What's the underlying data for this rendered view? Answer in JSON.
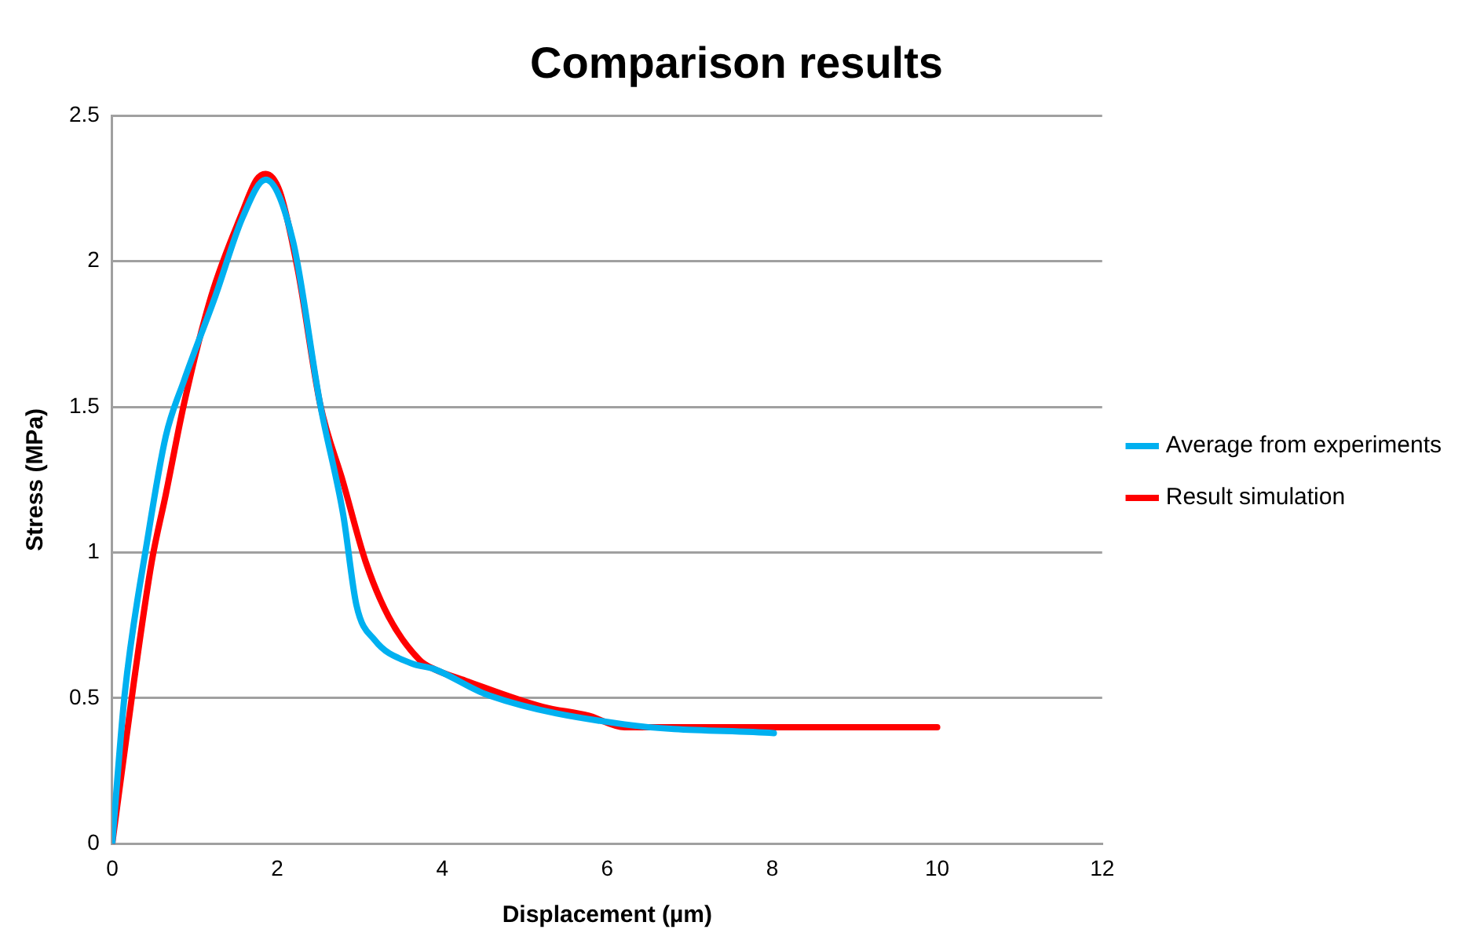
{
  "chart_data": {
    "type": "line",
    "title": "Comparison results",
    "xlabel": "Displacement (µm)",
    "ylabel": "Stress (MPa)",
    "xlim": [
      0,
      12
    ],
    "xticks": [
      0,
      2,
      4,
      6,
      8,
      10,
      12
    ],
    "ylim": [
      0,
      2.5
    ],
    "yticks": [
      0,
      0.5,
      1,
      1.5,
      2,
      2.5
    ],
    "grid": "y",
    "legend": "right",
    "marker": "none",
    "line_style": "solid",
    "series": [
      {
        "name": "Average from experiments",
        "color": "#00b0f0",
        "x": [
          0,
          0.15,
          0.43,
          0.65,
          0.87,
          1.25,
          1.58,
          1.86,
          2.19,
          2.52,
          2.8,
          2.96,
          3.18,
          3.62,
          3.9,
          4.56,
          6.21,
          8.02
        ],
        "values": [
          0,
          0.51,
          1.05,
          1.4,
          1.59,
          1.88,
          2.15,
          2.28,
          2.07,
          1.51,
          1.13,
          0.82,
          0.7,
          0.62,
          0.6,
          0.51,
          0.41,
          0.38
        ]
      },
      {
        "name": "Result simulation",
        "color": "#ff0000",
        "x": [
          0,
          0.26,
          0.48,
          0.65,
          0.87,
          1.2,
          1.58,
          1.75,
          1.86,
          2.03,
          2.25,
          2.52,
          2.8,
          3.07,
          3.35,
          3.73,
          3.9,
          4.28,
          5.22,
          5.77,
          6.21,
          10
        ],
        "values": [
          0,
          0.55,
          0.97,
          1.2,
          1.51,
          1.88,
          2.17,
          2.28,
          2.3,
          2.24,
          1.97,
          1.51,
          1.24,
          0.97,
          0.78,
          0.63,
          0.6,
          0.56,
          0.47,
          0.44,
          0.4,
          0.4
        ]
      }
    ]
  }
}
